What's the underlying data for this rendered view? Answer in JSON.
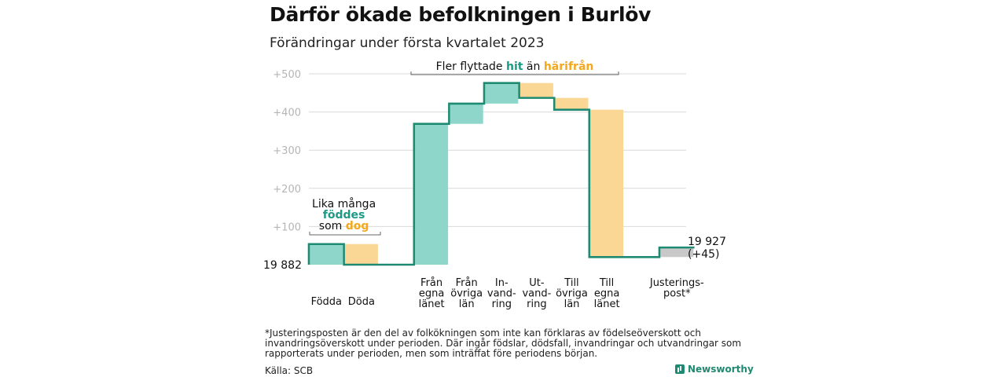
{
  "title": "Därför ökade befolkningen i Burlöv",
  "subtitle": "Förändringar under första kvartalet 2023",
  "footnote": "*Justeringsposten är den del av folkökningen som inte kan förklaras av födelseöverskott och invandringsöverskott under perioden. Där ingår födslar, dödsfall, invandringar och utvandringar som rapporterats under perioden, men som inträffat före periodens början.",
  "source": "Källa: SCB",
  "brand": "Newsworthy",
  "colors": {
    "increase": "#8dd6c9",
    "decrease": "#fad795",
    "adjustment": "#c8c8c8",
    "line": "#1f8a72",
    "hit": "#1b9a85",
    "harifran": "#f3a81d"
  },
  "chart_data": {
    "type": "waterfall",
    "baseline": 0,
    "start_label": "19 882",
    "end_label_lines": [
      "19 927",
      "(+45)"
    ],
    "ylim": [
      0,
      500
    ],
    "yticks": [
      {
        "value": 100,
        "label": "+100"
      },
      {
        "value": 200,
        "label": "+200"
      },
      {
        "value": 300,
        "label": "+300"
      },
      {
        "value": 400,
        "label": "+400"
      },
      {
        "value": 500,
        "label": "+500"
      }
    ],
    "categories": [
      {
        "label": [
          "Födda"
        ],
        "change": 54,
        "kind": "increase"
      },
      {
        "label": [
          "Döda"
        ],
        "change": -54,
        "kind": "decrease"
      },
      {
        "label": [],
        "change": 0,
        "kind": "none"
      },
      {
        "label": [
          "Från",
          "egna",
          "länet"
        ],
        "change": 369,
        "kind": "increase"
      },
      {
        "label": [
          "Från",
          "övriga",
          "län"
        ],
        "change": 53,
        "kind": "increase"
      },
      {
        "label": [
          "In-",
          "vand-",
          "ring"
        ],
        "change": 54,
        "kind": "increase"
      },
      {
        "label": [
          "Ut-",
          "vand-",
          "ring"
        ],
        "change": -39,
        "kind": "decrease"
      },
      {
        "label": [
          "Till",
          "övriga",
          "län"
        ],
        "change": -31,
        "kind": "decrease"
      },
      {
        "label": [
          "Till",
          "egna",
          "länet"
        ],
        "change": -386,
        "kind": "decrease"
      },
      {
        "label": [],
        "change": 0,
        "kind": "none"
      },
      {
        "label": [
          "Justerings-",
          "post*"
        ],
        "change": 25,
        "kind": "adjustment"
      }
    ],
    "annotations": {
      "births": {
        "line1": "Lika många",
        "line2": "föddes",
        "line3_pre": "som ",
        "line3_word": "dog"
      },
      "migration": {
        "pre": "Fler flyttade ",
        "hit": "hit",
        "mid": " än ",
        "harifran": "härifrån"
      }
    }
  }
}
